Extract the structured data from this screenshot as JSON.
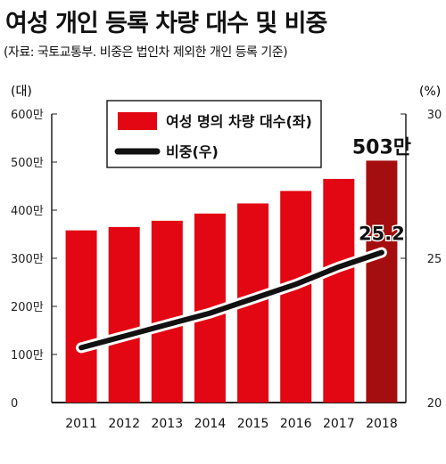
{
  "header": {
    "title": "여성 개인 등록 차량 대수 및 비중",
    "subtitle": "(자료: 국토교통부. 비중은 법인차 제외한 개인 등록 기준)"
  },
  "chart_data": {
    "type": "bar",
    "categories": [
      "2011",
      "2012",
      "2013",
      "2014",
      "2015",
      "2016",
      "2017",
      "2018"
    ],
    "series": [
      {
        "name": "여성 명의 차량 대수(좌)",
        "axis": "left",
        "values": [
          358,
          365,
          378,
          393,
          414,
          440,
          465,
          503
        ],
        "color": "#e30613",
        "highlight_color": "#a50e0e"
      },
      {
        "name": "비중(우)",
        "axis": "right",
        "type": "line",
        "values": [
          21.9,
          22.3,
          22.7,
          23.1,
          23.6,
          24.1,
          24.7,
          25.2
        ],
        "color": "#111111"
      }
    ],
    "left_axis": {
      "unit": "(대)",
      "range": [
        0,
        600
      ],
      "ticks": [
        0,
        100,
        200,
        300,
        400,
        500,
        600
      ],
      "tick_labels": [
        "0",
        "100만",
        "200만",
        "300만",
        "400만",
        "500만",
        "600만"
      ]
    },
    "right_axis": {
      "unit": "(%)",
      "range": [
        20,
        30
      ],
      "ticks": [
        20,
        25,
        30
      ],
      "tick_labels": [
        "20",
        "25",
        "30"
      ]
    },
    "annotations": {
      "last_bar_label": "503만",
      "last_point_label": "25.2"
    },
    "legend_position": "top-center",
    "grid": false
  }
}
